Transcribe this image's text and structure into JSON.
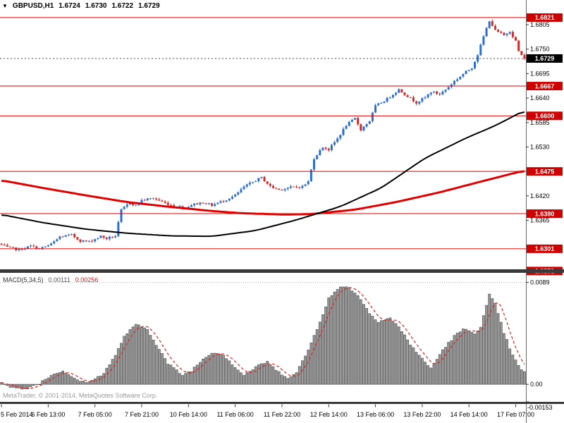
{
  "header": {
    "symbol": "GBPUSD,H1",
    "open": "1.6724",
    "high": "1.6730",
    "low": "1.6722",
    "close": "1.6729"
  },
  "copyright": "MetaTrader, © 2001-2014, MetaQuotes Software Corp.",
  "colors": {
    "bull": "#2e6ecb",
    "bear": "#d32b2b",
    "wick_bull": "#2e6ecb",
    "wick_bear": "#d32b2b",
    "level_line": "#dd0000",
    "level_badge": "#cf0000",
    "current_badge": "#000000",
    "ma_fast_red": "#e00000",
    "ma_slow_black": "#000000",
    "hist_fill": "#9b9b9b",
    "hist_stroke": "#555555",
    "signal_line": "#e02020",
    "separator": "#3a3a3a",
    "axis_text": "#000000",
    "grid_dot": "#aaaaaa"
  },
  "chart_data": {
    "type": "candlestick",
    "symbol": "GBPUSD",
    "timeframe": "H1",
    "title": "GBPUSD,H1 1.6724 1.6730 1.6722 1.6729",
    "last_ohlc": {
      "open": 1.6724,
      "high": 1.673,
      "low": 1.6722,
      "close": 1.6729
    },
    "current_price": 1.6729,
    "bars_count": 180,
    "y_axis": {
      "range": [
        1.6258,
        1.6832
      ],
      "ticks": [
        1.6805,
        1.675,
        1.6695,
        1.664,
        1.6585,
        1.653,
        1.642,
        1.6365
      ]
    },
    "levels": [
      1.6821,
      1.6667,
      1.66,
      1.6475,
      1.638,
      1.6301,
      1.6251
    ],
    "x_labels": [
      "5 Feb 2014",
      "6 Feb 13:00",
      "7 Feb 05:00",
      "7 Feb 21:00",
      "10 Feb 14:00",
      "11 Feb 06:00",
      "11 Feb 22:00",
      "12 Feb 14:00",
      "13 Feb 06:00",
      "13 Feb 22:00",
      "14 Feb 14:00",
      "17 Feb 07:00"
    ],
    "x_label_step_bars": 16,
    "price_path_anchors": [
      [
        0,
        1.631
      ],
      [
        2,
        1.6304
      ],
      [
        6,
        1.6299
      ],
      [
        10,
        1.6307
      ],
      [
        13,
        1.6301
      ],
      [
        17,
        1.6311
      ],
      [
        20,
        1.6328
      ],
      [
        24,
        1.6332
      ],
      [
        27,
        1.6319
      ],
      [
        30,
        1.6317
      ],
      [
        34,
        1.6329
      ],
      [
        36,
        1.6324
      ],
      [
        39,
        1.633
      ],
      [
        41,
        1.6388
      ],
      [
        44,
        1.6405
      ],
      [
        46,
        1.6398
      ],
      [
        48,
        1.641
      ],
      [
        52,
        1.6415
      ],
      [
        56,
        1.6404
      ],
      [
        59,
        1.6397
      ],
      [
        63,
        1.6394
      ],
      [
        65,
        1.64
      ],
      [
        69,
        1.6405
      ],
      [
        72,
        1.6399
      ],
      [
        76,
        1.6409
      ],
      [
        80,
        1.6421
      ],
      [
        83,
        1.644
      ],
      [
        87,
        1.6455
      ],
      [
        89,
        1.6461
      ],
      [
        92,
        1.6441
      ],
      [
        95,
        1.6434
      ],
      [
        99,
        1.6439
      ],
      [
        103,
        1.6441
      ],
      [
        105,
        1.6452
      ],
      [
        107,
        1.6505
      ],
      [
        110,
        1.653
      ],
      [
        112,
        1.6524
      ],
      [
        115,
        1.6549
      ],
      [
        118,
        1.6579
      ],
      [
        121,
        1.6594
      ],
      [
        123,
        1.6569
      ],
      [
        126,
        1.6589
      ],
      [
        128,
        1.6622
      ],
      [
        132,
        1.6638
      ],
      [
        134,
        1.6649
      ],
      [
        136,
        1.6659
      ],
      [
        139,
        1.6644
      ],
      [
        142,
        1.663
      ],
      [
        145,
        1.6641
      ],
      [
        147,
        1.6654
      ],
      [
        150,
        1.6649
      ],
      [
        152,
        1.6659
      ],
      [
        155,
        1.6678
      ],
      [
        158,
        1.6694
      ],
      [
        161,
        1.6709
      ],
      [
        163,
        1.6738
      ],
      [
        165,
        1.6778
      ],
      [
        167,
        1.6815
      ],
      [
        169,
        1.6792
      ],
      [
        172,
        1.6781
      ],
      [
        174,
        1.6791
      ],
      [
        176,
        1.6768
      ],
      [
        177,
        1.6745
      ],
      [
        179,
        1.6729
      ]
    ],
    "ma_fast_red_anchors": [
      [
        0,
        1.6455
      ],
      [
        14,
        1.6438
      ],
      [
        29,
        1.6421
      ],
      [
        43,
        1.6406
      ],
      [
        58,
        1.6395
      ],
      [
        72,
        1.6386
      ],
      [
        82,
        1.6381
      ],
      [
        97,
        1.6378
      ],
      [
        106,
        1.6379
      ],
      [
        121,
        1.6389
      ],
      [
        135,
        1.6406
      ],
      [
        150,
        1.6428
      ],
      [
        164,
        1.6452
      ],
      [
        179,
        1.6477
      ]
    ],
    "ma_slow_black_anchors": [
      [
        0,
        1.6378
      ],
      [
        14,
        1.636
      ],
      [
        29,
        1.6345
      ],
      [
        43,
        1.6336
      ],
      [
        58,
        1.633
      ],
      [
        72,
        1.6329
      ],
      [
        87,
        1.6342
      ],
      [
        101,
        1.6366
      ],
      [
        116,
        1.6396
      ],
      [
        130,
        1.6438
      ],
      [
        145,
        1.6505
      ],
      [
        159,
        1.655
      ],
      [
        169,
        1.6578
      ],
      [
        179,
        1.6612
      ]
    ],
    "macd": {
      "name": "MACD(5,34,5)",
      "main": "0.00111",
      "signal": "0.00256",
      "range": [
        -0.00153,
        0.00949
      ],
      "axis_labels": [
        {
          "v": 0.0089,
          "label": "0.0089"
        },
        {
          "v": 0,
          "label": "0.00"
        },
        {
          "v": -0.00153,
          "label": "-0.00153"
        }
      ],
      "anchors": [
        [
          0,
          0.0002
        ],
        [
          4,
          -0.0003
        ],
        [
          8,
          -0.0004
        ],
        [
          13,
          0.0001
        ],
        [
          17,
          0.0008
        ],
        [
          21,
          0.0012
        ],
        [
          24,
          0.0006
        ],
        [
          28,
          0.0002
        ],
        [
          31,
          0.0003
        ],
        [
          35,
          0.001
        ],
        [
          39,
          0.0025
        ],
        [
          42,
          0.0042
        ],
        [
          46,
          0.0052
        ],
        [
          50,
          0.0048
        ],
        [
          53,
          0.0035
        ],
        [
          57,
          0.0018
        ],
        [
          62,
          0.0008
        ],
        [
          65,
          0.0012
        ],
        [
          69,
          0.0022
        ],
        [
          72,
          0.0028
        ],
        [
          76,
          0.0026
        ],
        [
          80,
          0.0015
        ],
        [
          83,
          0.0008
        ],
        [
          87,
          0.0015
        ],
        [
          91,
          0.002
        ],
        [
          94,
          0.0012
        ],
        [
          98,
          0.0006
        ],
        [
          101,
          0.001
        ],
        [
          105,
          0.003
        ],
        [
          109,
          0.0055
        ],
        [
          112,
          0.0075
        ],
        [
          116,
          0.0085
        ],
        [
          118,
          0.0086
        ],
        [
          122,
          0.0078
        ],
        [
          126,
          0.0062
        ],
        [
          129,
          0.0055
        ],
        [
          133,
          0.0058
        ],
        [
          136,
          0.005
        ],
        [
          140,
          0.0035
        ],
        [
          144,
          0.0022
        ],
        [
          147,
          0.0014
        ],
        [
          151,
          0.003
        ],
        [
          155,
          0.0042
        ],
        [
          158,
          0.0048
        ],
        [
          162,
          0.0045
        ],
        [
          164,
          0.005
        ],
        [
          167,
          0.0078
        ],
        [
          169,
          0.007
        ],
        [
          172,
          0.0045
        ],
        [
          175,
          0.0025
        ],
        [
          178,
          0.0012
        ],
        [
          179,
          0.00111
        ]
      ]
    }
  }
}
